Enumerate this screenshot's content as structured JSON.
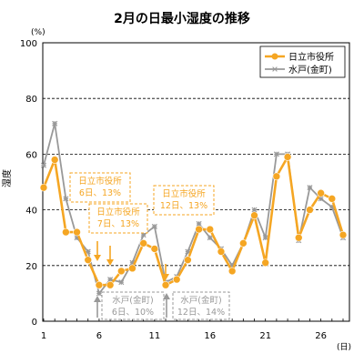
{
  "chart_data": {
    "type": "line",
    "title": "2月の日最小湿度の推移",
    "ylabel": "湿度",
    "yunit": "(%)",
    "xunit": "(日)",
    "ylim": [
      0,
      100
    ],
    "yticks": [
      0,
      20,
      40,
      60,
      80,
      100
    ],
    "xticks": [
      1,
      6,
      11,
      16,
      21,
      26
    ],
    "xlim": [
      1,
      28
    ],
    "grid": "horizontal dashed",
    "legend_position": "top-right",
    "x": [
      1,
      2,
      3,
      4,
      5,
      6,
      7,
      8,
      9,
      10,
      11,
      12,
      13,
      14,
      15,
      16,
      17,
      18,
      19,
      20,
      21,
      22,
      23,
      24,
      25,
      26,
      27,
      28
    ],
    "series": [
      {
        "name": "日立市役所",
        "color": "#F5A623",
        "marker": "circle",
        "values": [
          48,
          58,
          32,
          32,
          22,
          13,
          13,
          18,
          19,
          28,
          26,
          13,
          15,
          22,
          33,
          33,
          25,
          18,
          28,
          38,
          21,
          52,
          59,
          30,
          40,
          46,
          44,
          31
        ]
      },
      {
        "name": "水戸(金町)",
        "color": "#999999",
        "marker": "asterisk",
        "values": [
          56,
          71,
          44,
          30,
          25,
          10,
          15,
          14,
          21,
          31,
          34,
          14,
          16,
          25,
          35,
          30,
          26,
          20,
          28,
          40,
          30,
          60,
          60,
          29,
          48,
          44,
          41,
          30
        ]
      }
    ],
    "annotations": [
      {
        "series": "日立市役所",
        "lines": [
          "日立市役所",
          "6日、13%"
        ],
        "day": 6,
        "value": 13
      },
      {
        "series": "日立市役所",
        "lines": [
          "日立市役所",
          "7日、13%"
        ],
        "day": 7,
        "value": 13
      },
      {
        "series": "日立市役所",
        "lines": [
          "日立市役所",
          "12日、13%"
        ],
        "day": 12,
        "value": 13
      },
      {
        "series": "水戸(金町)",
        "lines": [
          "水戸(金町)",
          "6日、10%"
        ],
        "day": 6,
        "value": 10
      },
      {
        "series": "水戸(金町)",
        "lines": [
          "水戸(金町)",
          "12日、14%"
        ],
        "day": 12,
        "value": 14
      }
    ]
  }
}
